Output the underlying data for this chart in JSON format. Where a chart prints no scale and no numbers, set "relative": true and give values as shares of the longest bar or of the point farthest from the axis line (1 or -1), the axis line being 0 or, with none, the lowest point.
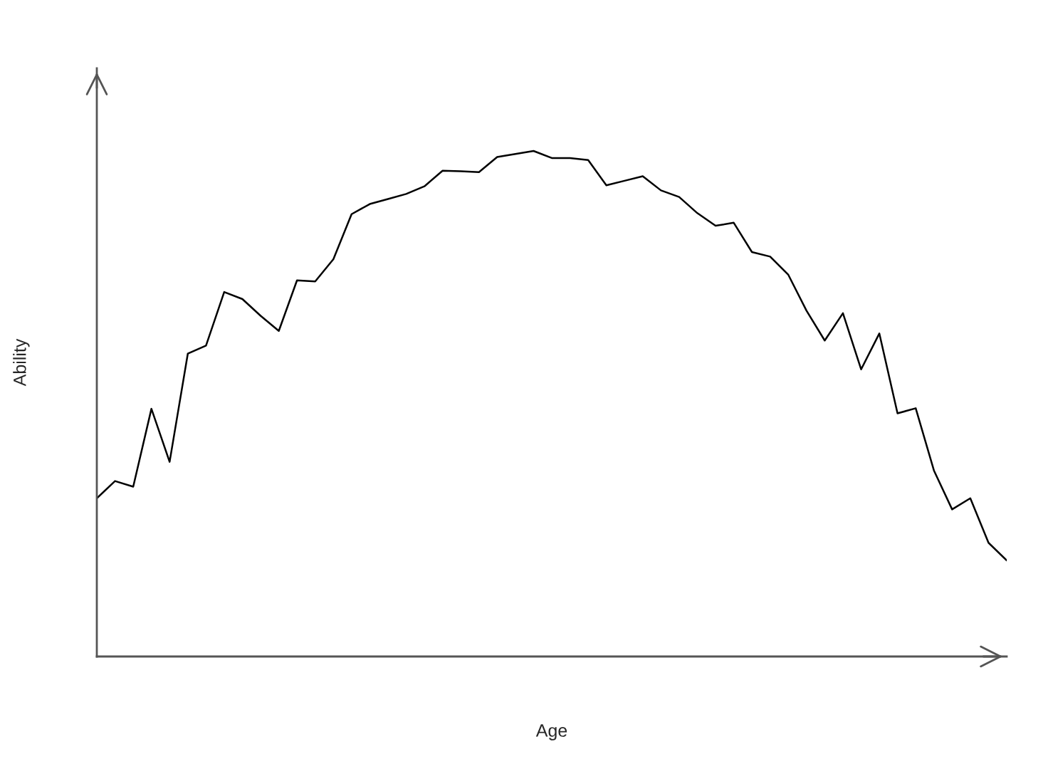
{
  "chart_data": {
    "type": "line",
    "xlabel": "Age",
    "ylabel": "Ability",
    "relative": true,
    "marker": "none",
    "line_style": "solid",
    "categories": [
      null,
      null,
      null,
      null,
      null,
      null,
      null,
      null,
      null,
      null,
      null,
      null,
      null,
      null,
      null,
      null,
      null,
      null,
      null,
      null,
      null,
      null,
      null,
      null,
      null,
      null,
      null,
      null,
      null,
      null,
      null,
      null,
      null,
      null,
      null,
      null,
      null,
      null,
      null,
      null,
      null,
      null,
      null,
      null,
      null,
      null,
      null,
      null,
      null,
      null,
      null
    ],
    "series": [
      {
        "color": "#000000",
        "values": [
          0.313,
          0.347,
          0.336,
          0.49,
          0.385,
          0.599,
          0.615,
          0.721,
          0.707,
          0.674,
          0.644,
          0.744,
          0.742,
          0.786,
          0.875,
          0.895,
          0.905,
          0.915,
          0.93,
          0.961,
          0.96,
          0.958,
          0.988,
          0.994,
          1,
          0.986,
          0.986,
          0.982,
          0.932,
          0.941,
          0.95,
          0.922,
          0.909,
          0.877,
          0.852,
          0.858,
          0.8,
          0.791,
          0.755,
          0.684,
          0.625,
          0.679,
          0.568,
          0.639,
          0.481,
          0.491,
          0.368,
          0.291,
          0.313,
          0.225,
          0.19
        ]
      }
    ]
  }
}
